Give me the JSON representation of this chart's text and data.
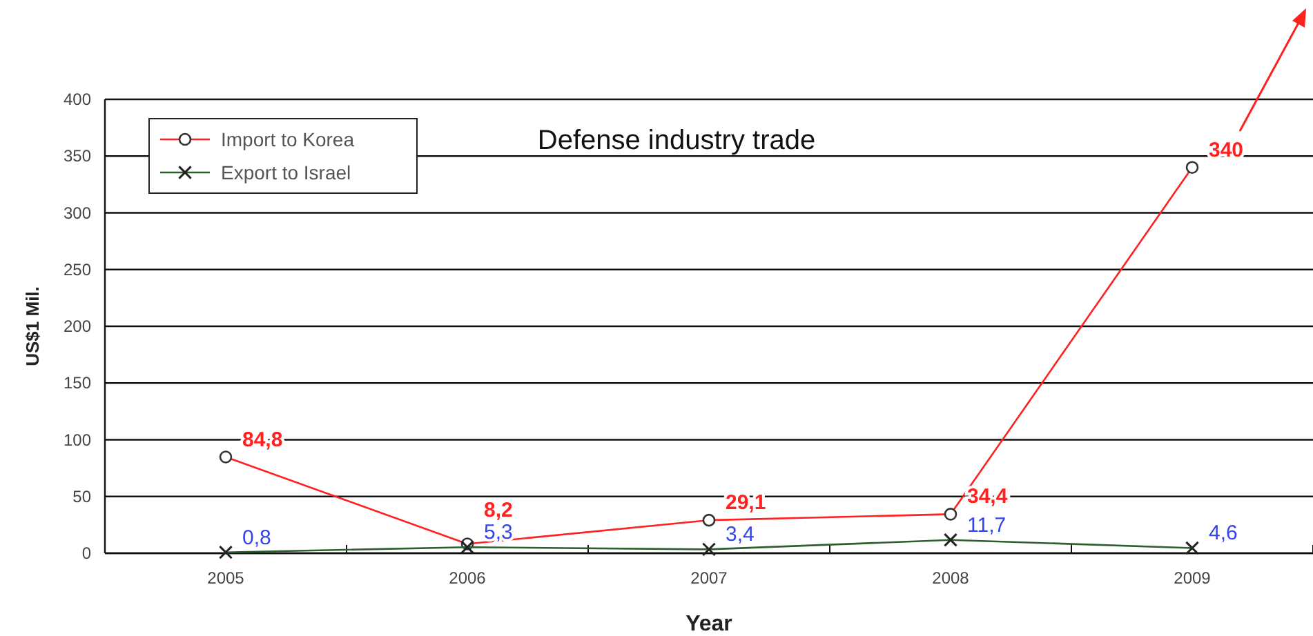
{
  "chart_data": {
    "type": "line",
    "title": "Defense industry trade",
    "xlabel": "Year",
    "ylabel": "US$1 Mil.",
    "categories": [
      "2005",
      "2006",
      "2007",
      "2008",
      "2009"
    ],
    "series": [
      {
        "name": "Import to Korea",
        "color": "#ff2020",
        "marker": "circle",
        "values": [
          84.8,
          8.2,
          29.1,
          34.4,
          340
        ],
        "value_labels": [
          "84,8",
          "8,2",
          "29,1",
          "34,4",
          "340"
        ]
      },
      {
        "name": "Export to Israel",
        "color": "#2e5e2e",
        "marker": "cross",
        "values": [
          0.8,
          5.3,
          3.4,
          11.7,
          4.6
        ],
        "value_labels": [
          "0,8",
          "5,3",
          "3,4",
          "11,7",
          "4,6"
        ]
      }
    ],
    "ylim": [
      0,
      400
    ],
    "yticks": [
      0,
      50,
      100,
      150,
      200,
      250,
      300,
      350,
      400
    ],
    "grid": "y",
    "legend": "top left"
  }
}
